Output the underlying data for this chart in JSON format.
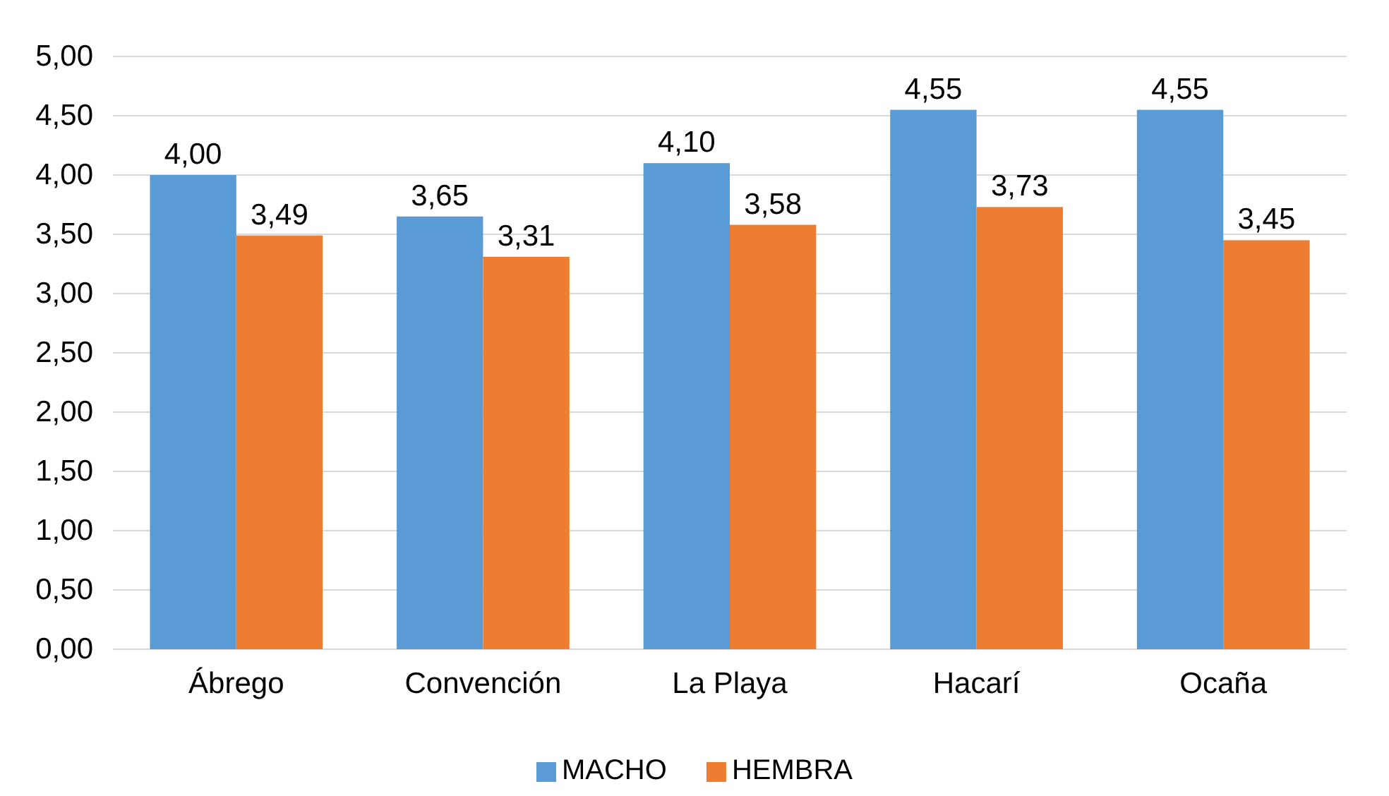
{
  "chart_data": {
    "type": "bar",
    "categories": [
      "Ábrego",
      "Convención",
      "La Playa",
      "Hacarí",
      "Ocaña"
    ],
    "series": [
      {
        "name": "MACHO",
        "color": "#5b9bd5",
        "values": [
          4.0,
          3.65,
          4.1,
          4.55,
          4.55
        ],
        "value_labels": [
          "4,00",
          "3,65",
          "4,10",
          "4,55",
          "4,55"
        ]
      },
      {
        "name": "HEMBRA",
        "color": "#ed7d31",
        "values": [
          3.49,
          3.31,
          3.58,
          3.73,
          3.45
        ],
        "value_labels": [
          "3,49",
          "3,31",
          "3,58",
          "3,73",
          "3,45"
        ]
      }
    ],
    "ylim": [
      0,
      5
    ],
    "yticks": [
      {
        "value": 0,
        "label": "0,00"
      },
      {
        "value": 0.5,
        "label": "0,50"
      },
      {
        "value": 1,
        "label": "1,00"
      },
      {
        "value": 1.5,
        "label": "1,50"
      },
      {
        "value": 2,
        "label": "2,00"
      },
      {
        "value": 2.5,
        "label": "2,50"
      },
      {
        "value": 3,
        "label": "3,00"
      },
      {
        "value": 3.5,
        "label": "3,50"
      },
      {
        "value": 4,
        "label": "4,00"
      },
      {
        "value": 4.5,
        "label": "4,50"
      },
      {
        "value": 5,
        "label": "5,00"
      }
    ],
    "grid": "y",
    "legend": "bottom"
  }
}
